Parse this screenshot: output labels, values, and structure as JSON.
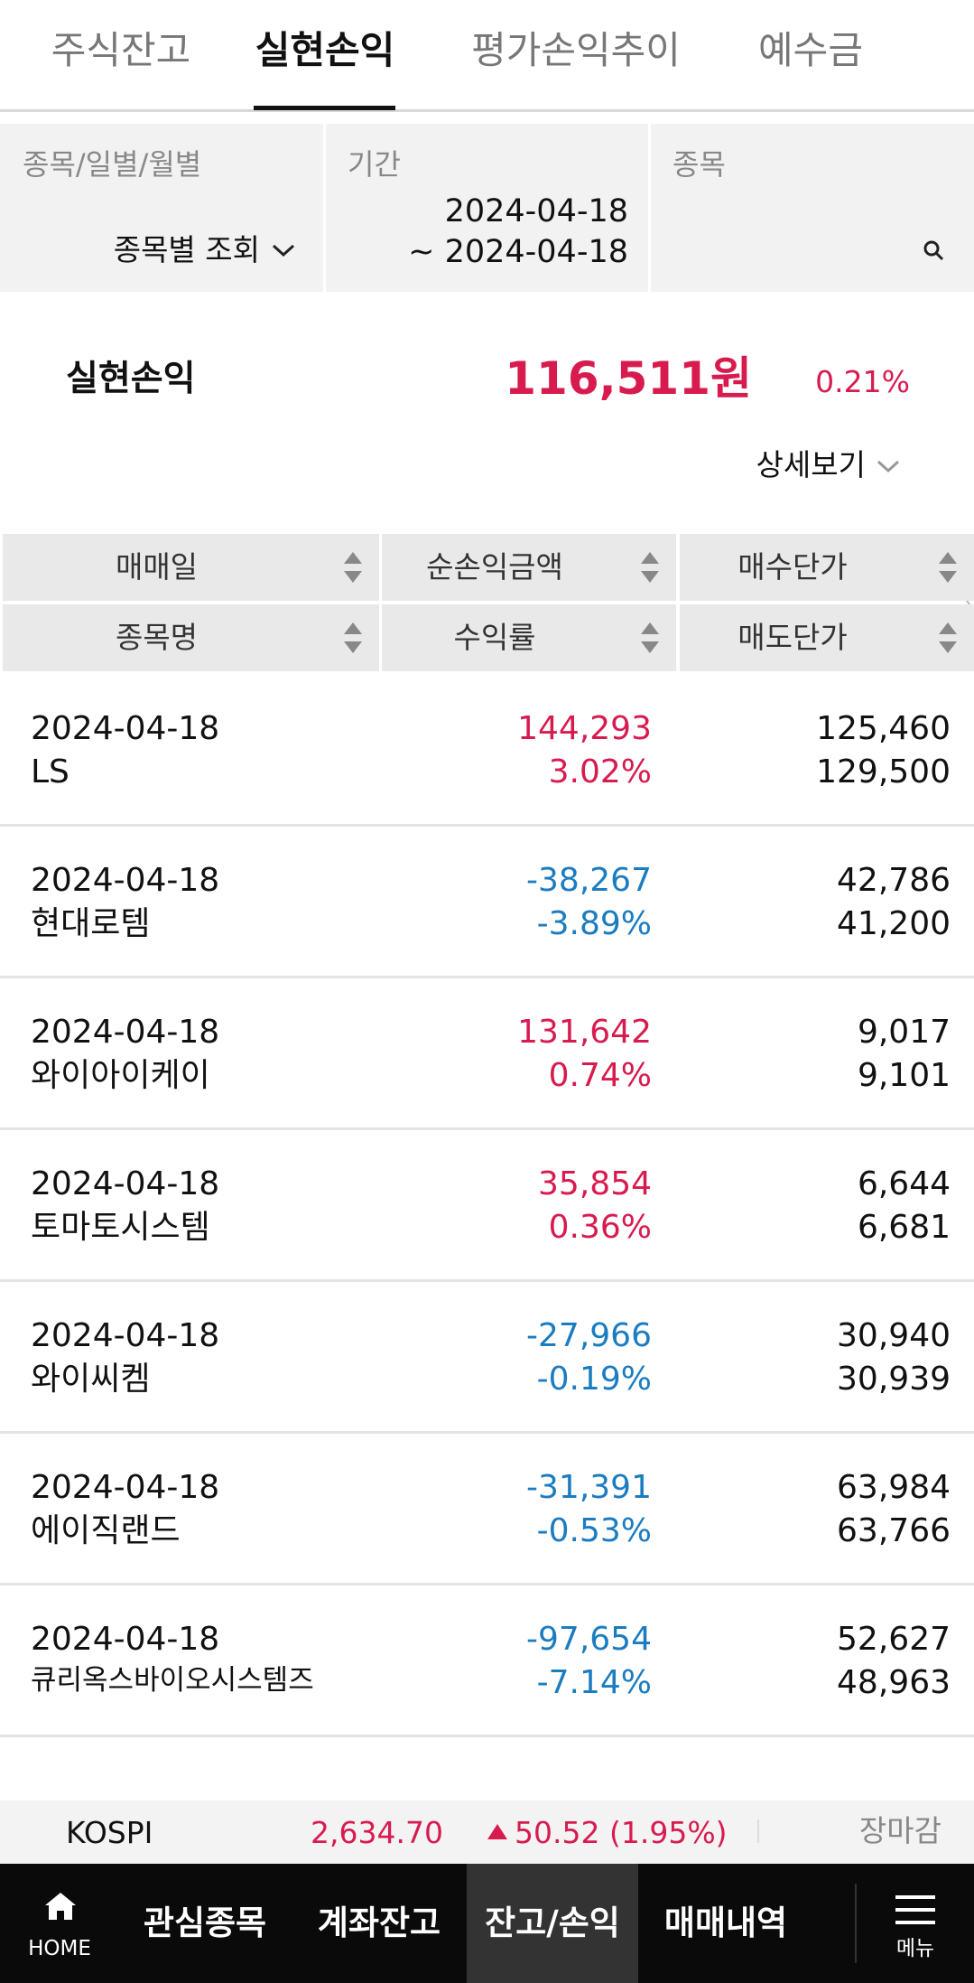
{
  "tabs": [
    "주식잔고",
    "실현손익",
    "평가손익추이",
    "예수금"
  ],
  "filters": {
    "type": {
      "label": "종목/일별/월별",
      "value": "종목별 조회"
    },
    "period": {
      "label": "기간",
      "from": "2024-04-18",
      "to": "~ 2024-04-18"
    },
    "stock": {
      "label": "종목"
    }
  },
  "summary": {
    "label": "실현손익",
    "amount": "116,511원",
    "rate": "0.21%",
    "detail": "상세보기"
  },
  "table": {
    "headers": [
      [
        "매매일",
        "순손익금액",
        "매수단가"
      ],
      [
        "종목명",
        "수익률",
        "매도단가"
      ]
    ],
    "rows": [
      [
        "2024-04-18",
        "LS",
        "144,293",
        "3.02%",
        "125,460",
        "129,500"
      ],
      [
        "2024-04-18",
        "현대로템",
        "-38,267",
        "-3.89%",
        "42,786",
        "41,200"
      ],
      [
        "2024-04-18",
        "와이아이케이",
        "131,642",
        "0.74%",
        "9,017",
        "9,101"
      ],
      [
        "2024-04-18",
        "토마토시스템",
        "35,854",
        "0.36%",
        "6,644",
        "6,681"
      ],
      [
        "2024-04-18",
        "와이씨켐",
        "-27,966",
        "-0.19%",
        "30,940",
        "30,939"
      ],
      [
        "2024-04-18",
        "에이직랜드",
        "-31,391",
        "-0.53%",
        "63,984",
        "63,766"
      ],
      [
        "2024-04-18",
        "큐리옥스바이오시스템즈",
        "-97,654",
        "-7.14%",
        "52,627",
        "48,963"
      ]
    ]
  },
  "market": {
    "index": "KOSPI",
    "value": "2,634.70",
    "change": "50.52 (1.95%)",
    "status": "장마감"
  },
  "nav": [
    "HOME",
    "관심종목",
    "계좌잔고",
    "잔고/손익",
    "매매내역",
    "메뉴"
  ]
}
